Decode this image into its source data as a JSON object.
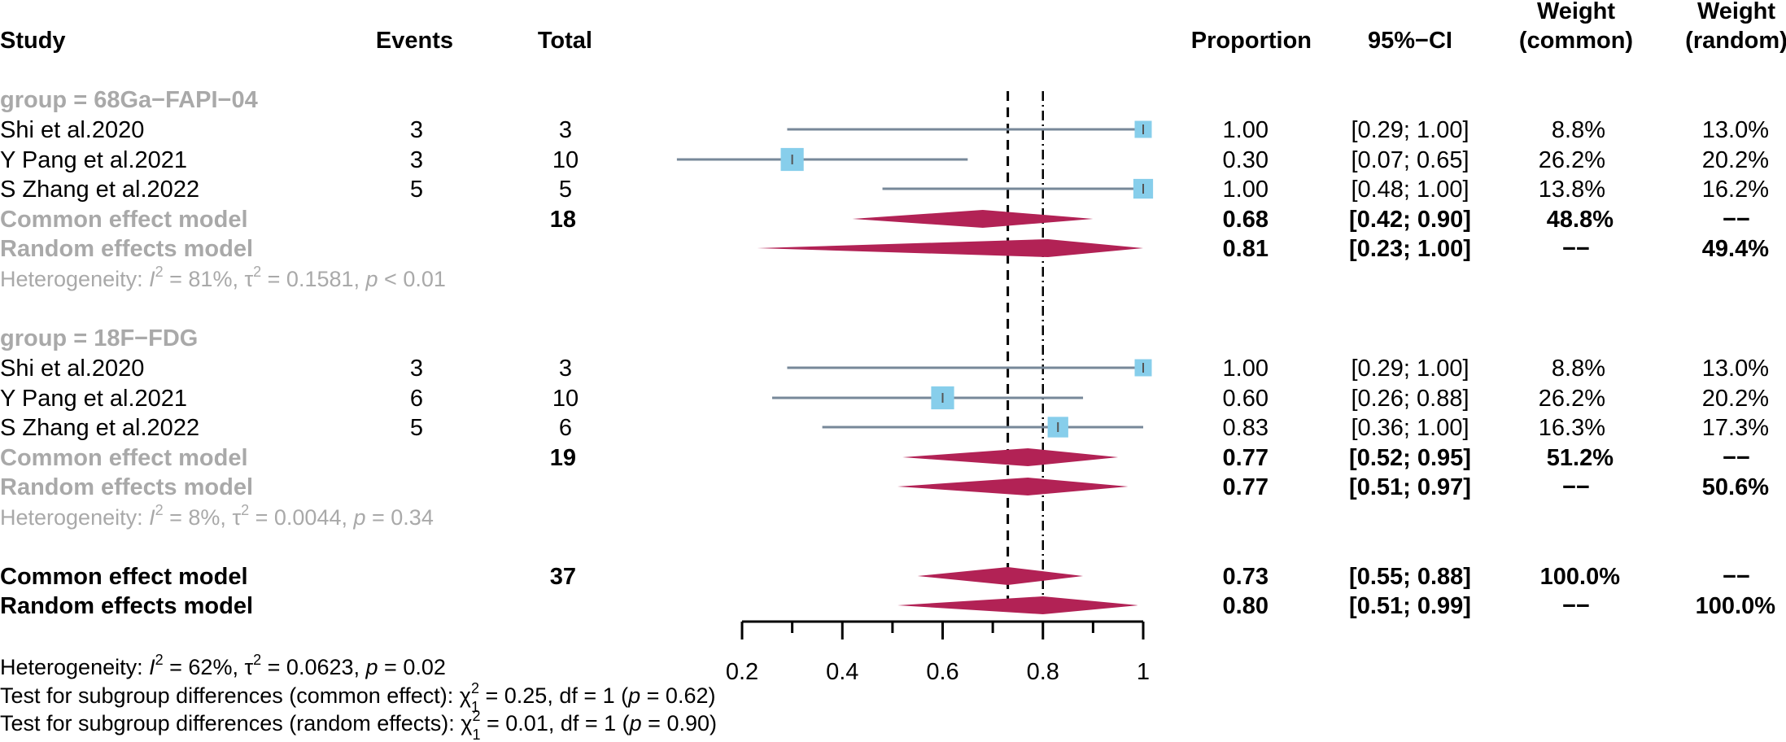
{
  "header": {
    "study": "Study",
    "events": "Events",
    "total": "Total",
    "proportion": "Proportion",
    "ci": "95%−CI",
    "weight_common_1": "Weight",
    "weight_common_2": "(common)",
    "weight_random_1": "Weight",
    "weight_random_2": "(random)"
  },
  "groups": [
    {
      "label": "group = 68Ga−FAPI−04",
      "studies": [
        {
          "name": "Shi et al.2020",
          "events": "3",
          "total": "3",
          "prop": "1.00",
          "ci": "[0.29; 1.00]",
          "w_common": "8.8%",
          "w_random": "13.0%"
        },
        {
          "name": "Y Pang et al.2021",
          "events": "3",
          "total": "10",
          "prop": "0.30",
          "ci": "[0.07; 0.65]",
          "w_common": "26.2%",
          "w_random": "20.2%"
        },
        {
          "name": "S Zhang et al.2022",
          "events": "5",
          "total": "5",
          "prop": "1.00",
          "ci": "[0.48; 1.00]",
          "w_common": "13.8%",
          "w_random": "16.2%"
        }
      ],
      "common": {
        "label": "Common effect model",
        "total": "18",
        "prop": "0.68",
        "ci": "[0.42; 0.90]",
        "w_common": "48.8%",
        "w_random": "−−"
      },
      "random": {
        "label": "Random effects model",
        "prop": "0.81",
        "ci": "[0.23; 1.00]",
        "w_common": "−−",
        "w_random": "49.4%"
      },
      "het": {
        "prefix": "Heterogeneity: ",
        "i": "I",
        "i_sup": "2",
        "i_val": " = 81%, ",
        "tau": "τ",
        "tau_sup": "2",
        "tau_val": " = 0.1581, ",
        "p": "p",
        "p_val": " < 0.01"
      }
    },
    {
      "label": "group = 18F−FDG",
      "studies": [
        {
          "name": "Shi et al.2020",
          "events": "3",
          "total": "3",
          "prop": "1.00",
          "ci": "[0.29; 1.00]",
          "w_common": "8.8%",
          "w_random": "13.0%"
        },
        {
          "name": "Y Pang et al.2021",
          "events": "6",
          "total": "10",
          "prop": "0.60",
          "ci": "[0.26; 0.88]",
          "w_common": "26.2%",
          "w_random": "20.2%"
        },
        {
          "name": "S Zhang et al.2022",
          "events": "5",
          "total": "6",
          "prop": "0.83",
          "ci": "[0.36; 1.00]",
          "w_common": "16.3%",
          "w_random": "17.3%"
        }
      ],
      "common": {
        "label": "Common effect model",
        "total": "19",
        "prop": "0.77",
        "ci": "[0.52; 0.95]",
        "w_common": "51.2%",
        "w_random": "−−"
      },
      "random": {
        "label": "Random effects model",
        "prop": "0.77",
        "ci": "[0.51; 0.97]",
        "w_common": "−−",
        "w_random": "50.6%"
      },
      "het": {
        "prefix": "Heterogeneity: ",
        "i": "I",
        "i_sup": "2",
        "i_val": " = 8%, ",
        "tau": "τ",
        "tau_sup": "2",
        "tau_val": " = 0.0044, ",
        "p": "p",
        "p_val": " = 0.34"
      }
    }
  ],
  "overall": {
    "common": {
      "label": "Common effect model",
      "total": "37",
      "prop": "0.73",
      "ci": "[0.55; 0.88]",
      "w_common": "100.0%",
      "w_random": "−−"
    },
    "random": {
      "label": "Random effects model",
      "prop": "0.80",
      "ci": "[0.51; 0.99]",
      "w_common": "−−",
      "w_random": "100.0%"
    }
  },
  "footer": {
    "het": {
      "prefix": "Heterogeneity: ",
      "i": "I",
      "i_sup": "2",
      "i_val": " = 62%, ",
      "tau": "τ",
      "tau_sup": "2",
      "tau_val": " = 0.0623, ",
      "p": "p",
      "p_val": " = 0.02"
    },
    "test_common": {
      "prefix": "Test for subgroup differences (common effect): ",
      "chi": "χ",
      "chi_sup": "2",
      "chi_sub": "1",
      "mid": " = 0.25, df = 1 (",
      "p": "p",
      "p_val": " = 0.62)"
    },
    "test_random": {
      "prefix": "Test for subgroup differences (random effects): ",
      "chi": "χ",
      "chi_sup": "2",
      "chi_sub": "1",
      "mid": " = 0.01, df = 1 (",
      "p": "p",
      "p_val": " = 0.90)"
    }
  },
  "colors": {
    "square": "#87CEEB",
    "ci_line": "#778899",
    "diamond": "#B22255",
    "subgroup_text": "#A9A9A9",
    "axis": "#000000"
  },
  "chart_data": {
    "type": "forest",
    "xlim": [
      0.2,
      1.0
    ],
    "xticks": [
      0.2,
      0.4,
      0.6,
      0.8,
      1.0
    ],
    "xtick_labels": [
      "0.2",
      "0.4",
      "0.6",
      "0.8",
      "1"
    ],
    "common_ref": 0.73,
    "random_ref": 0.8,
    "groups": [
      {
        "studies": [
          {
            "est": 1.0,
            "lower": 0.29,
            "upper": 1.0,
            "weight": 13.0
          },
          {
            "est": 0.3,
            "lower": 0.07,
            "upper": 0.65,
            "weight": 20.2
          },
          {
            "est": 1.0,
            "lower": 0.48,
            "upper": 1.0,
            "weight": 16.2
          }
        ],
        "common": {
          "est": 0.68,
          "lower": 0.42,
          "upper": 0.9
        },
        "random": {
          "est": 0.81,
          "lower": 0.23,
          "upper": 1.0
        }
      },
      {
        "studies": [
          {
            "est": 1.0,
            "lower": 0.29,
            "upper": 1.0,
            "weight": 13.0
          },
          {
            "est": 0.6,
            "lower": 0.26,
            "upper": 0.88,
            "weight": 20.2
          },
          {
            "est": 0.83,
            "lower": 0.36,
            "upper": 1.0,
            "weight": 17.3
          }
        ],
        "common": {
          "est": 0.77,
          "lower": 0.52,
          "upper": 0.95
        },
        "random": {
          "est": 0.77,
          "lower": 0.51,
          "upper": 0.97
        }
      }
    ],
    "overall": {
      "common": {
        "est": 0.73,
        "lower": 0.55,
        "upper": 0.88
      },
      "random": {
        "est": 0.8,
        "lower": 0.51,
        "upper": 0.99
      }
    }
  }
}
